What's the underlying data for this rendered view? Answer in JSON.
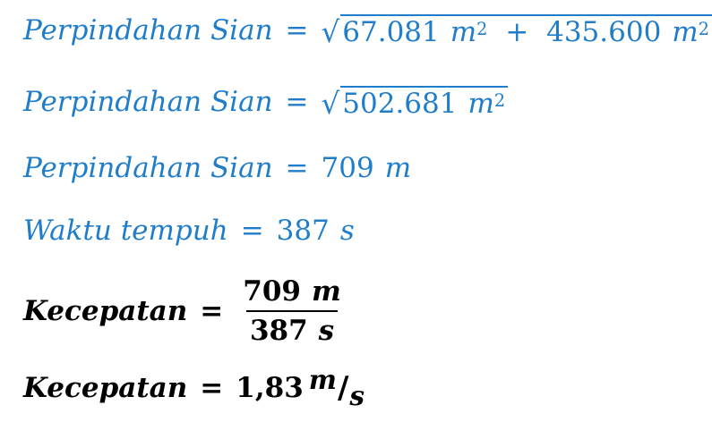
{
  "equations": [
    {
      "label": "Perpindahan Sian",
      "eq": "=",
      "sqrt_term1_value": "67.081",
      "sqrt_term1_unit": "m",
      "sqrt_term1_exp": "2",
      "plus": "+",
      "sqrt_term2_value": "435.600",
      "sqrt_term2_unit": "m",
      "sqrt_term2_exp": "2"
    },
    {
      "label": "Perpindahan Sian",
      "eq": "=",
      "sqrt_value": "502.681",
      "sqrt_unit": "m",
      "sqrt_exp": "2"
    },
    {
      "label": "Perpindahan Sian",
      "eq": "=",
      "value": "709",
      "unit": "m"
    },
    {
      "label": "Waktu tempuh",
      "eq": "=",
      "value": "387",
      "unit": "s"
    },
    {
      "label": "Kecepatan",
      "eq": "=",
      "numerator_value": "709",
      "numerator_unit": "m",
      "denominator_value": "387",
      "denominator_unit": "s"
    },
    {
      "label": "Kecepatan",
      "eq": "=",
      "value": "1,83",
      "unit_top": "m",
      "unit_slash": "/",
      "unit_bottom": "s"
    }
  ],
  "colors": {
    "blue_text": "#1F7DC9",
    "black_text": "#000000"
  }
}
